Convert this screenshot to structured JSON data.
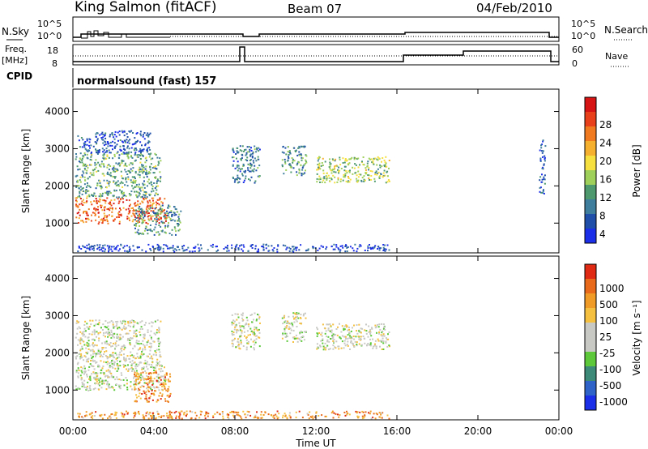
{
  "header": {
    "station": "King Salmon (fitACF)",
    "beam": "Beam 07",
    "date": "04/Feb/2010"
  },
  "status_panels": {
    "nsky_label": "N.Sky",
    "nsky_ticks": [
      "10^5",
      "10^0"
    ],
    "nsearch_label": "N.Search",
    "nsearch_ticks": [
      "10^5",
      "10^0"
    ],
    "freq_label_1": "Freq.",
    "freq_label_2": "[MHz]",
    "freq_ticks": [
      "18",
      "8"
    ],
    "nave_label": "Nave",
    "nave_ticks": [
      "60",
      "0"
    ],
    "cpid_label": "CPID",
    "cpid_text": "normalsound (fast) 157"
  },
  "chart_data": [
    {
      "type": "heatmap",
      "name": "power",
      "ylabel": "Slant Range [km]",
      "ylim": [
        200,
        4600
      ],
      "y_ticks": [
        1000,
        2000,
        3000,
        4000
      ],
      "xlim": [
        0,
        24
      ],
      "colorbar": {
        "label": "Power [dB]",
        "ticks": [
          "28",
          "24",
          "20",
          "16",
          "12",
          "8",
          "4"
        ],
        "colors": [
          "#1c2fe8",
          "#1f4fa8",
          "#3f7e9c",
          "#4e9a6e",
          "#9ed05a",
          "#f5e040",
          "#f5b030",
          "#f07a1f",
          "#e8401a",
          "#d61414"
        ]
      },
      "regions": [
        {
          "t0": 0.1,
          "t1": 4.6,
          "r0": 1000,
          "r1": 1700,
          "level": 0.8
        },
        {
          "t0": 0.1,
          "t1": 4.3,
          "r0": 1700,
          "r1": 2900,
          "level": 0.35
        },
        {
          "t0": 0.2,
          "t1": 3.8,
          "r0": 2900,
          "r1": 3500,
          "level": 0.15
        },
        {
          "t0": 3.0,
          "t1": 5.3,
          "r0": 700,
          "r1": 1500,
          "level": 0.3
        },
        {
          "t0": 7.8,
          "t1": 9.2,
          "r0": 2100,
          "r1": 3100,
          "level": 0.25
        },
        {
          "t0": 10.3,
          "t1": 11.5,
          "r0": 2300,
          "r1": 3100,
          "level": 0.3
        },
        {
          "t0": 12.0,
          "t1": 15.6,
          "r0": 2100,
          "r1": 2800,
          "level": 0.45
        },
        {
          "t0": 0.2,
          "t1": 15.6,
          "r0": 250,
          "r1": 450,
          "level": 0.1
        },
        {
          "t0": 23.0,
          "t1": 23.3,
          "r0": 1800,
          "r1": 3300,
          "level": 0.15
        }
      ]
    },
    {
      "type": "heatmap",
      "name": "velocity",
      "ylabel": "Slant Range [km]",
      "ylim": [
        200,
        4600
      ],
      "y_ticks": [
        1000,
        2000,
        3000,
        4000
      ],
      "xlim": [
        0,
        24
      ],
      "x_ticks": [
        "00:00",
        "04:00",
        "08:00",
        "12:00",
        "16:00",
        "20:00",
        "00:00"
      ],
      "xlabel": "Time UT",
      "colorbar": {
        "label": "Velocity [m s⁻¹]",
        "ticks": [
          "1000",
          "500",
          "100",
          "25",
          "-25",
          "-100",
          "-500",
          "-1000"
        ],
        "colors": [
          "#1c2fe8",
          "#2f63c8",
          "#3d8a78",
          "#5cc83a",
          "#c8c8c4",
          "#c8c8c4",
          "#f5c040",
          "#f09a28",
          "#e86a1a",
          "#e02a14"
        ]
      },
      "regions": [
        {
          "t0": 0.1,
          "t1": 4.6,
          "r0": 1000,
          "r1": 1700,
          "level": 0.5
        },
        {
          "t0": 0.1,
          "t1": 4.3,
          "r0": 1700,
          "r1": 2900,
          "level": 0.5
        },
        {
          "t0": 3.0,
          "t1": 4.8,
          "r0": 700,
          "r1": 1500,
          "level": 0.8
        },
        {
          "t0": 7.8,
          "t1": 9.2,
          "r0": 2100,
          "r1": 3100,
          "level": 0.5
        },
        {
          "t0": 10.3,
          "t1": 11.5,
          "r0": 2300,
          "r1": 3100,
          "level": 0.5
        },
        {
          "t0": 12.0,
          "t1": 15.6,
          "r0": 2100,
          "r1": 2800,
          "level": 0.5
        },
        {
          "t0": 0.2,
          "t1": 15.6,
          "r0": 250,
          "r1": 450,
          "level": 0.75
        }
      ]
    }
  ]
}
